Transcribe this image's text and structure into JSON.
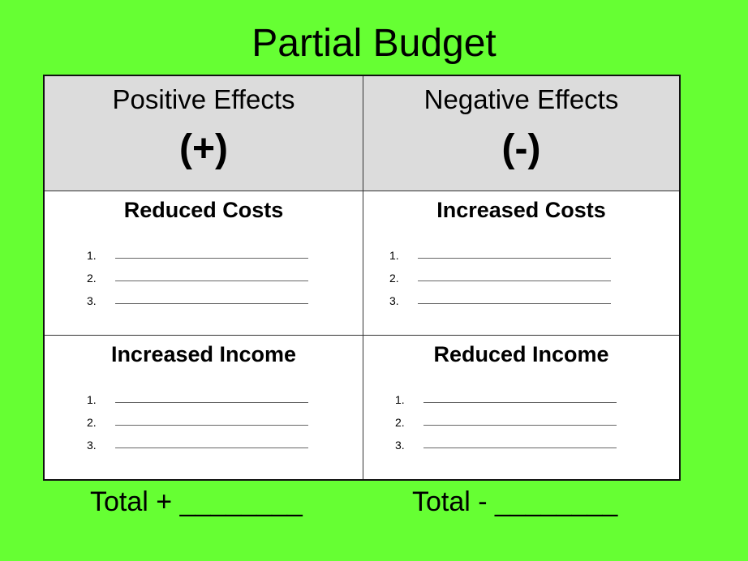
{
  "title": "Partial Budget",
  "positive": {
    "header": "Positive Effects",
    "sign": "(+)",
    "sections": [
      {
        "title": "Reduced Costs",
        "items": [
          "1.",
          "2.",
          "3."
        ]
      },
      {
        "title": "Increased Income",
        "items": [
          "1.",
          "2.",
          "3."
        ]
      }
    ],
    "total": "Total + ________"
  },
  "negative": {
    "header": "Negative Effects",
    "sign": "(-)",
    "sections": [
      {
        "title": "Increased Costs",
        "items": [
          "1.",
          "2.",
          "3."
        ]
      },
      {
        "title": "Reduced Income",
        "items": [
          "1.",
          "2.",
          "3."
        ]
      }
    ],
    "total": "Total - ________"
  },
  "colors": {
    "background": "#66ff33",
    "header_fill": "#dcdcdc"
  }
}
